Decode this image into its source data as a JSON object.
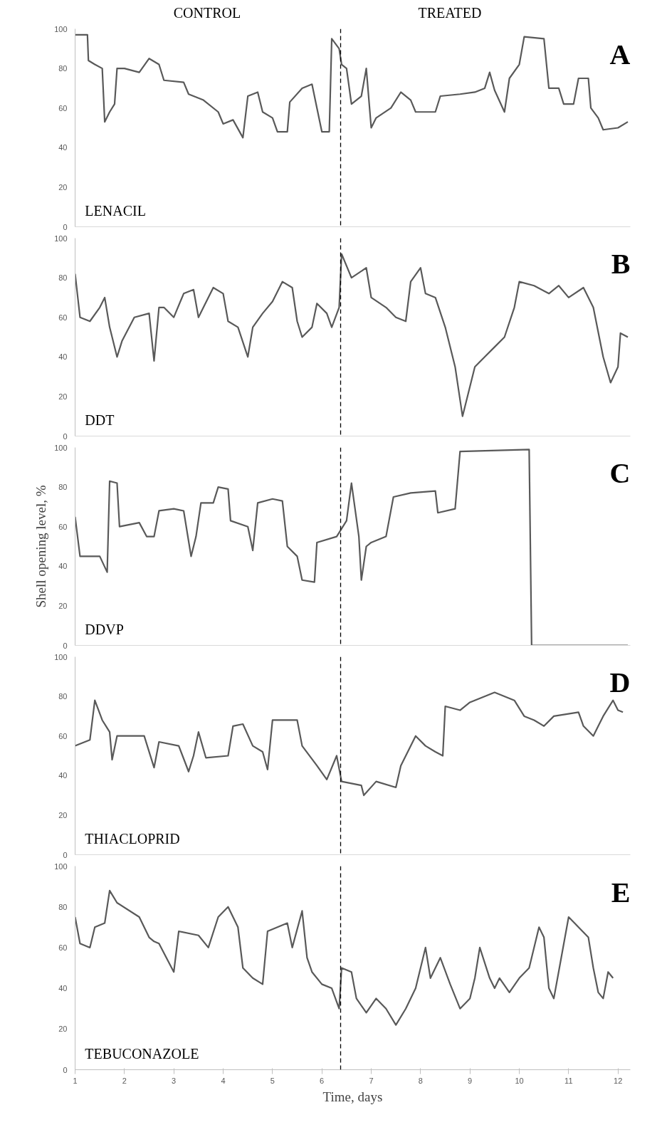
{
  "chart_data": [
    {
      "type": "line",
      "xlim": [
        1,
        12.25
      ],
      "xticks": [
        1,
        2,
        3,
        4,
        5,
        6,
        7,
        8,
        9,
        10,
        11,
        12
      ],
      "ylim": [
        0,
        100
      ],
      "yticks": [
        0,
        20,
        40,
        60,
        80,
        100
      ],
      "tick_labels": "y",
      "grid": false,
      "ref_lines": [
        {
          "axis": "x",
          "value": 6.38,
          "color": "#000000",
          "line_style": "dashed"
        }
      ],
      "annotations": [
        "LENACIL",
        "A",
        "CONTROL",
        "TREATED"
      ],
      "series": [
        {
          "color": "#595959",
          "x": [
            1,
            1.25,
            1.27,
            1.4,
            1.55,
            1.6,
            1.7,
            1.8,
            1.85,
            2,
            2.3,
            2.5,
            2.7,
            2.8,
            3.2,
            3.3,
            3.6,
            3.9,
            4.0,
            4.2,
            4.4,
            4.5,
            4.7,
            4.8,
            5.0,
            5.1,
            5.3,
            5.35,
            5.6,
            5.8,
            5.9,
            6.0,
            6.15,
            6.2,
            6.35,
            6.4,
            6.5,
            6.6,
            6.8,
            6.9,
            7.0,
            7.1,
            7.4,
            7.6,
            7.8,
            7.9,
            8.3,
            8.4,
            8.8,
            9.1,
            9.3,
            9.4,
            9.5,
            9.7,
            9.8,
            10.0,
            10.1,
            10.5,
            10.6,
            10.8,
            10.9,
            11.1,
            11.2,
            11.4,
            11.45,
            11.6,
            11.7,
            12.0,
            12.2
          ],
          "values": [
            97,
            97,
            84,
            82,
            80,
            53,
            58,
            62,
            80,
            80,
            78,
            85,
            82,
            74,
            73,
            67,
            64,
            58,
            52,
            54,
            45,
            66,
            68,
            58,
            55,
            48,
            48,
            63,
            70,
            72,
            60,
            48,
            48,
            95,
            90,
            82,
            80,
            62,
            66,
            80,
            50,
            55,
            60,
            68,
            64,
            58,
            58,
            66,
            67,
            68,
            70,
            78,
            69,
            58,
            75,
            82,
            96,
            95,
            70,
            70,
            62,
            62,
            75,
            75,
            60,
            55,
            49,
            50,
            53
          ]
        }
      ]
    },
    {
      "type": "line",
      "xlim": [
        1,
        12.25
      ],
      "xticks": [
        1,
        2,
        3,
        4,
        5,
        6,
        7,
        8,
        9,
        10,
        11,
        12
      ],
      "ylim": [
        0,
        100
      ],
      "yticks": [
        0,
        20,
        40,
        60,
        80,
        100
      ],
      "tick_labels": "y",
      "grid": false,
      "ref_lines": [
        {
          "axis": "x",
          "value": 6.38,
          "color": "#000000",
          "line_style": "dashed"
        }
      ],
      "annotations": [
        "DDT",
        "B"
      ],
      "series": [
        {
          "color": "#595959",
          "x": [
            1,
            1.1,
            1.3,
            1.5,
            1.6,
            1.7,
            1.85,
            1.95,
            2.2,
            2.5,
            2.6,
            2.7,
            2.8,
            3.0,
            3.2,
            3.4,
            3.5,
            3.6,
            3.8,
            4.0,
            4.1,
            4.3,
            4.5,
            4.6,
            4.8,
            5.0,
            5.2,
            5.4,
            5.5,
            5.6,
            5.8,
            5.9,
            6.1,
            6.2,
            6.35,
            6.4,
            6.6,
            6.9,
            7.0,
            7.3,
            7.5,
            7.7,
            7.8,
            8.0,
            8.1,
            8.3,
            8.5,
            8.7,
            8.85,
            8.95,
            9.1,
            9.3,
            9.5,
            9.7,
            9.9,
            10.0,
            10.3,
            10.6,
            10.8,
            11.0,
            11.3,
            11.5,
            11.7,
            11.85,
            12.0,
            12.05,
            12.2
          ],
          "values": [
            82,
            60,
            58,
            65,
            70,
            55,
            40,
            48,
            60,
            62,
            38,
            65,
            65,
            60,
            72,
            74,
            60,
            65,
            75,
            72,
            58,
            55,
            40,
            55,
            62,
            68,
            78,
            75,
            58,
            50,
            55,
            67,
            62,
            55,
            65,
            92,
            80,
            85,
            70,
            65,
            60,
            58,
            78,
            85,
            72,
            70,
            55,
            35,
            10,
            20,
            35,
            40,
            45,
            50,
            65,
            78,
            76,
            72,
            76,
            70,
            75,
            65,
            40,
            27,
            35,
            52,
            50
          ]
        }
      ]
    },
    {
      "type": "line",
      "xlim": [
        1,
        12.25
      ],
      "xticks": [
        1,
        2,
        3,
        4,
        5,
        6,
        7,
        8,
        9,
        10,
        11,
        12
      ],
      "ylim": [
        0,
        100
      ],
      "yticks": [
        0,
        20,
        40,
        60,
        80,
        100
      ],
      "tick_labels": "y",
      "grid": false,
      "ylabel": "Shell opening level, %",
      "ref_lines": [
        {
          "axis": "x",
          "value": 6.38,
          "color": "#000000",
          "line_style": "dashed"
        }
      ],
      "annotations": [
        "DDVP",
        "C"
      ],
      "series": [
        {
          "color": "#595959",
          "x": [
            1,
            1.1,
            1.5,
            1.65,
            1.7,
            1.85,
            1.9,
            2.3,
            2.45,
            2.6,
            2.7,
            3.0,
            3.2,
            3.35,
            3.45,
            3.55,
            3.8,
            3.9,
            4.1,
            4.15,
            4.5,
            4.6,
            4.7,
            5.0,
            5.2,
            5.3,
            5.5,
            5.6,
            5.85,
            5.9,
            6.3,
            6.5,
            6.6,
            6.75,
            6.8,
            6.9,
            7.0,
            7.3,
            7.45,
            7.8,
            8.3,
            8.35,
            8.7,
            8.8,
            10.2,
            10.25,
            12.2
          ],
          "values": [
            65,
            45,
            45,
            37,
            83,
            82,
            60,
            62,
            55,
            55,
            68,
            69,
            68,
            45,
            55,
            72,
            72,
            80,
            79,
            63,
            60,
            48,
            72,
            74,
            73,
            50,
            45,
            33,
            32,
            52,
            55,
            63,
            82,
            55,
            33,
            50,
            52,
            55,
            75,
            77,
            78,
            67,
            69,
            98,
            99,
            0,
            0
          ]
        }
      ]
    },
    {
      "type": "line",
      "xlim": [
        1,
        12.25
      ],
      "xticks": [
        1,
        2,
        3,
        4,
        5,
        6,
        7,
        8,
        9,
        10,
        11,
        12
      ],
      "ylim": [
        0,
        100
      ],
      "yticks": [
        0,
        20,
        40,
        60,
        80,
        100
      ],
      "tick_labels": "y",
      "grid": false,
      "ref_lines": [
        {
          "axis": "x",
          "value": 6.38,
          "color": "#000000",
          "line_style": "dashed"
        }
      ],
      "annotations": [
        "THIACLOPRID",
        "D"
      ],
      "series": [
        {
          "color": "#595959",
          "x": [
            1,
            1.3,
            1.4,
            1.55,
            1.7,
            1.75,
            1.85,
            2.4,
            2.6,
            2.7,
            3.1,
            3.3,
            3.4,
            3.5,
            3.65,
            4.1,
            4.2,
            4.4,
            4.6,
            4.8,
            4.9,
            5.0,
            5.5,
            5.6,
            5.9,
            6.1,
            6.3,
            6.4,
            6.8,
            6.85,
            7.1,
            7.5,
            7.6,
            7.9,
            8.1,
            8.3,
            8.45,
            8.5,
            8.8,
            9.0,
            9.5,
            9.9,
            10.1,
            10.3,
            10.5,
            10.7,
            11.2,
            11.3,
            11.5,
            11.7,
            11.9,
            12.0,
            12.1
          ],
          "values": [
            55,
            58,
            78,
            68,
            62,
            48,
            60,
            60,
            44,
            57,
            55,
            42,
            50,
            62,
            49,
            50,
            65,
            66,
            55,
            52,
            43,
            68,
            68,
            55,
            45,
            38,
            50,
            37,
            35,
            30,
            37,
            34,
            45,
            60,
            55,
            52,
            50,
            75,
            73,
            77,
            82,
            78,
            70,
            68,
            65,
            70,
            72,
            65,
            60,
            70,
            78,
            73,
            72
          ]
        }
      ]
    },
    {
      "type": "line",
      "xlim": [
        1,
        12.25
      ],
      "xticks": [
        1,
        2,
        3,
        4,
        5,
        6,
        7,
        8,
        9,
        10,
        11,
        12
      ],
      "ylim": [
        0,
        100
      ],
      "yticks": [
        0,
        20,
        40,
        60,
        80,
        100
      ],
      "grid": false,
      "xlabel": "Time, days",
      "ref_lines": [
        {
          "axis": "x",
          "value": 6.38,
          "color": "#000000",
          "line_style": "dashed"
        }
      ],
      "annotations": [
        "TEBUCONAZOLE",
        "E"
      ],
      "series": [
        {
          "color": "#595959",
          "x": [
            1,
            1.1,
            1.3,
            1.4,
            1.6,
            1.7,
            1.85,
            2.3,
            2.5,
            2.6,
            2.7,
            2.85,
            3.0,
            3.1,
            3.5,
            3.7,
            3.9,
            4.1,
            4.3,
            4.4,
            4.6,
            4.8,
            4.9,
            5.3,
            5.4,
            5.6,
            5.7,
            5.8,
            6.0,
            6.2,
            6.35,
            6.4,
            6.6,
            6.7,
            6.9,
            7.1,
            7.3,
            7.5,
            7.7,
            7.9,
            8.1,
            8.2,
            8.4,
            8.6,
            8.8,
            9.0,
            9.1,
            9.2,
            9.4,
            9.5,
            9.6,
            9.8,
            10.0,
            10.2,
            10.4,
            10.5,
            10.6,
            10.7,
            10.85,
            11.0,
            11.2,
            11.4,
            11.5,
            11.6,
            11.7,
            11.8,
            11.9
          ],
          "values": [
            75,
            62,
            60,
            70,
            72,
            88,
            82,
            75,
            65,
            63,
            62,
            55,
            48,
            68,
            66,
            60,
            75,
            80,
            70,
            50,
            45,
            42,
            68,
            72,
            60,
            78,
            55,
            48,
            42,
            40,
            30,
            50,
            48,
            35,
            28,
            35,
            30,
            22,
            30,
            40,
            60,
            45,
            55,
            42,
            30,
            35,
            45,
            60,
            45,
            40,
            45,
            38,
            45,
            50,
            70,
            65,
            40,
            35,
            55,
            75,
            70,
            65,
            50,
            38,
            35,
            48,
            45
          ]
        }
      ]
    }
  ]
}
